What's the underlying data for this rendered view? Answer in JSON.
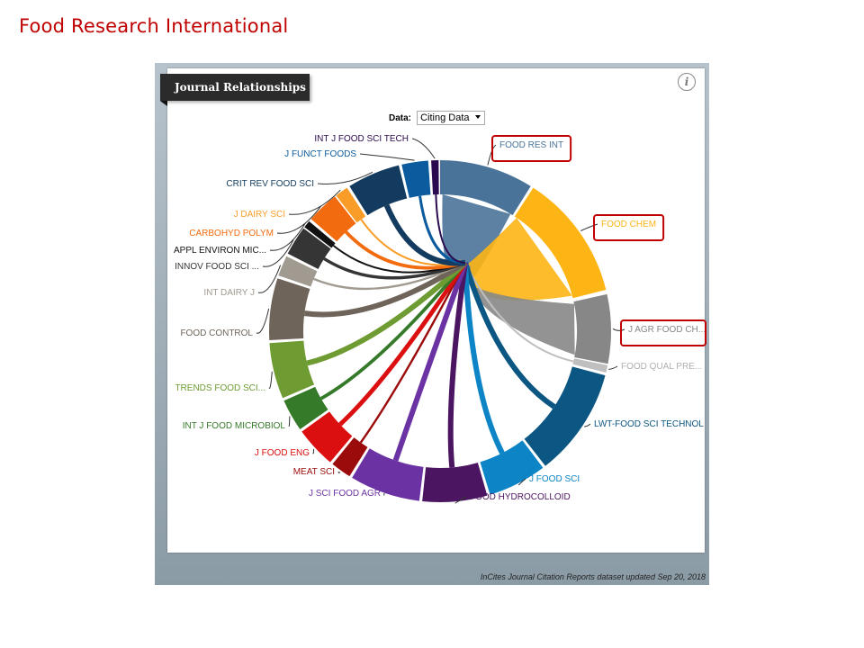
{
  "slide_title": "Food Research International",
  "widget": {
    "title": "Journal Relationships",
    "info_icon": "info-icon",
    "data_label": "Data:",
    "data_selected": "Citing Data",
    "footer": "InCites Journal Citation Reports dataset updated Sep 20, 2018"
  },
  "journals": [
    {
      "id": "food-res-int",
      "label": "FOOD RES INT",
      "color": "#4a7399",
      "highlighted": true
    },
    {
      "id": "food-chem",
      "label": "FOOD CHEM",
      "color": "#fdb515",
      "highlighted": true
    },
    {
      "id": "j-agr-food-ch",
      "label": "J AGR FOOD CH...",
      "color": "#878787",
      "highlighted": true
    },
    {
      "id": "food-qual-pre",
      "label": "FOOD QUAL PRE...",
      "color": "#bfbfbf",
      "highlighted": false
    },
    {
      "id": "lwt-food-sci-technol",
      "label": "LWT-FOOD SCI TECHNOL",
      "color": "#0b5682",
      "highlighted": false
    },
    {
      "id": "j-food-sci",
      "label": "J FOOD SCI",
      "color": "#0c84c6",
      "highlighted": false
    },
    {
      "id": "food-hydrocolloid",
      "label": "FOOD HYDROCOLLOID",
      "color": "#4b1561",
      "highlighted": false
    },
    {
      "id": "j-sci-food-agr",
      "label": "J SCI FOOD AGR",
      "color": "#6b32a3",
      "highlighted": false
    },
    {
      "id": "meat-sci",
      "label": "MEAT SCI",
      "color": "#9b0b0b",
      "highlighted": false
    },
    {
      "id": "j-food-eng",
      "label": "J FOOD ENG",
      "color": "#db0f0f",
      "highlighted": false
    },
    {
      "id": "int-j-food-microbiol",
      "label": "INT J FOOD MICROBIOL",
      "color": "#357a29",
      "highlighted": false
    },
    {
      "id": "trends-food-sci",
      "label": "TRENDS FOOD SCI...",
      "color": "#6e9b32",
      "highlighted": false
    },
    {
      "id": "food-control",
      "label": "FOOD CONTROL",
      "color": "#6e645a",
      "highlighted": false
    },
    {
      "id": "int-dairy-j",
      "label": "INT DAIRY J",
      "color": "#a19a90",
      "highlighted": false
    },
    {
      "id": "innov-food-sci",
      "label": "INNOV FOOD SCI ...",
      "color": "#353535",
      "highlighted": false
    },
    {
      "id": "appl-environ-mic",
      "label": "APPL ENVIRON MIC...",
      "color": "#121212",
      "highlighted": false
    },
    {
      "id": "carbohyd-polym",
      "label": "CARBOHYD POLYM",
      "color": "#f26b0f",
      "highlighted": false
    },
    {
      "id": "j-dairy-sci",
      "label": "J DAIRY SCI",
      "color": "#f99d28",
      "highlighted": false
    },
    {
      "id": "crit-rev-food-sci",
      "label": "CRIT REV FOOD SCI",
      "color": "#133b5f",
      "highlighted": false
    },
    {
      "id": "j-funct-foods",
      "label": "J FUNCT FOODS",
      "color": "#0b5b9e",
      "highlighted": false
    },
    {
      "id": "int-j-food-sci-tech",
      "label": "INT J FOOD SCI TECH",
      "color": "#2b0b4f",
      "highlighted": false
    }
  ]
}
